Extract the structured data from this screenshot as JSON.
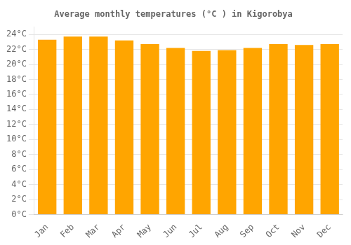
{
  "chart_data": {
    "type": "bar",
    "title": "Average monthly temperatures (°C ) in Kigorobya",
    "categories": [
      "Jan",
      "Feb",
      "Mar",
      "Apr",
      "May",
      "Jun",
      "Jul",
      "Aug",
      "Sep",
      "Oct",
      "Nov",
      "Dec"
    ],
    "values": [
      23.3,
      23.7,
      23.7,
      23.2,
      22.7,
      22.2,
      21.8,
      21.9,
      22.2,
      22.7,
      22.6,
      22.7
    ],
    "color": "#FFA500",
    "ylim": [
      0,
      25
    ],
    "yticks": [
      {
        "value": 0,
        "label": "0°C"
      },
      {
        "value": 2,
        "label": "2°C"
      },
      {
        "value": 4,
        "label": "4°C"
      },
      {
        "value": 6,
        "label": "6°C"
      },
      {
        "value": 8,
        "label": "8°C"
      },
      {
        "value": 10,
        "label": "10°C"
      },
      {
        "value": 12,
        "label": "12°C"
      },
      {
        "value": 14,
        "label": "14°C"
      },
      {
        "value": 16,
        "label": "16°C"
      },
      {
        "value": 18,
        "label": "18°C"
      },
      {
        "value": 20,
        "label": "20°C"
      },
      {
        "value": 22,
        "label": "22°C"
      },
      {
        "value": 24,
        "label": "24°C"
      }
    ],
    "grid": true
  }
}
